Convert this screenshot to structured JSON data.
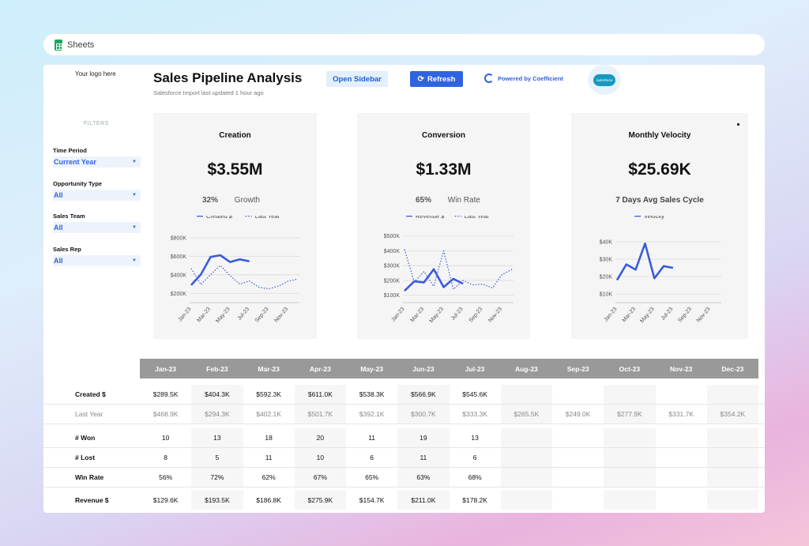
{
  "topbar": {
    "app_name": "Sheets"
  },
  "header": {
    "logo_placeholder": "Your logo here",
    "title": "Sales Pipeline Analysis",
    "subtitle": "Salesforce Import last updated 1 hour ago",
    "open_sidebar_label": "Open Sidebar",
    "refresh_label": "Refresh",
    "powered_by": "Powered by Coefficient",
    "salesforce_logo_text": "salesforce"
  },
  "filters": {
    "title": "FILTERS",
    "items": [
      {
        "label": "Time Period",
        "value": "Current Year"
      },
      {
        "label": "Opportunity Type",
        "value": "All"
      },
      {
        "label": "Sales Team",
        "value": "All"
      },
      {
        "label": "Sales Rep",
        "value": "All"
      }
    ]
  },
  "cards": [
    {
      "title": "Creation",
      "value": "$3.55M",
      "metric_pct": "32%",
      "metric_label": "Growth"
    },
    {
      "title": "Conversion",
      "value": "$1.33M",
      "metric_pct": "65%",
      "metric_label": "Win Rate"
    },
    {
      "title": "Monthly Velocity",
      "value": "$25.69K",
      "metric_pct": "",
      "metric_label": "7 Days Avg Sales Cycle"
    }
  ],
  "chart_data": [
    {
      "type": "line",
      "x": [
        "Jan-23",
        "Feb-23",
        "Mar-23",
        "Apr-23",
        "May-23",
        "Jun-23",
        "Jul-23",
        "Aug-23",
        "Sep-23",
        "Oct-23",
        "Nov-23",
        "Dec-23"
      ],
      "xticks": [
        "Jan-23",
        "Mar-23",
        "May-23",
        "Jul-23",
        "Sep-23",
        "Nov-23"
      ],
      "yticks": [
        "$200K",
        "$400K",
        "$600K",
        "$800K"
      ],
      "ylim": [
        100,
        850
      ],
      "series": [
        {
          "name": "Created $",
          "style": "solid",
          "color": "#3b5bdb",
          "values": [
            289.5,
            404.3,
            592.3,
            611.0,
            538.3,
            566.9,
            545.6,
            null,
            null,
            null,
            null,
            null
          ]
        },
        {
          "name": "Last Year",
          "style": "dotted",
          "color": "#3b5bdb",
          "values": [
            468.9,
            294.3,
            402.1,
            501.7,
            392.1,
            300.7,
            333.3,
            265.5,
            249.0,
            277.9,
            331.7,
            354.2
          ]
        }
      ]
    },
    {
      "type": "line",
      "x": [
        "Jan-23",
        "Feb-23",
        "Mar-23",
        "Apr-23",
        "May-23",
        "Jun-23",
        "Jul-23",
        "Aug-23",
        "Sep-23",
        "Oct-23",
        "Nov-23",
        "Dec-23"
      ],
      "xticks": [
        "Jan-23",
        "Mar-23",
        "May-23",
        "Jul-23",
        "Sep-23",
        "Nov-23"
      ],
      "yticks": [
        "$100K",
        "$200K",
        "$300K",
        "$400K",
        "$500K"
      ],
      "ylim": [
        50,
        520
      ],
      "series": [
        {
          "name": "Revenue $",
          "style": "solid",
          "color": "#3b5bdb",
          "values": [
            129.6,
            193.5,
            186.8,
            275.9,
            154.7,
            211.0,
            178.2,
            null,
            null,
            null,
            null,
            null
          ]
        },
        {
          "name": "Last Year",
          "style": "dotted",
          "color": "#3b5bdb",
          "values": [
            410,
            190,
            260,
            160,
            400,
            140,
            200,
            170,
            175,
            150,
            240,
            275
          ]
        }
      ]
    },
    {
      "type": "line",
      "x": [
        "Jan-23",
        "Feb-23",
        "Mar-23",
        "Apr-23",
        "May-23",
        "Jun-23",
        "Jul-23",
        "Aug-23",
        "Sep-23",
        "Oct-23",
        "Nov-23",
        "Dec-23"
      ],
      "xticks": [
        "Jan-23",
        "Mar-23",
        "May-23",
        "Jul-23",
        "Sep-23",
        "Nov-23"
      ],
      "yticks": [
        "$10K",
        "$20K",
        "$30K",
        "$40K"
      ],
      "ylim": [
        5,
        45
      ],
      "series": [
        {
          "name": "Velocity",
          "style": "solid",
          "color": "#3b5bdb",
          "values": [
            18,
            27,
            24,
            39,
            19,
            26,
            25,
            null,
            null,
            null,
            null,
            null
          ]
        }
      ]
    }
  ],
  "table": {
    "months": [
      "Jan-23",
      "Feb-23",
      "Mar-23",
      "Apr-23",
      "May-23",
      "Jun-23",
      "Jul-23",
      "Aug-23",
      "Sep-23",
      "Oct-23",
      "Nov-23",
      "Dec-23"
    ],
    "rows": [
      {
        "label": "Created $",
        "light": false,
        "values": [
          "$289.5K",
          "$404.3K",
          "$592.3K",
          "$611.0K",
          "$538.3K",
          "$566.9K",
          "$545.6K",
          "",
          "",
          "",
          "",
          ""
        ]
      },
      {
        "label": "Last Year",
        "light": true,
        "values": [
          "$468.9K",
          "$294.3K",
          "$402.1K",
          "$501.7K",
          "$392.1K",
          "$300.7K",
          "$333.3K",
          "$265.5K",
          "$249.0K",
          "$277.9K",
          "$331.7K",
          "$354.2K"
        ]
      },
      {
        "label": "# Won",
        "light": false,
        "values": [
          "10",
          "13",
          "18",
          "20",
          "11",
          "19",
          "13",
          "",
          "",
          "",
          "",
          ""
        ]
      },
      {
        "label": "# Lost",
        "light": false,
        "values": [
          "8",
          "5",
          "11",
          "10",
          "6",
          "11",
          "6",
          "",
          "",
          "",
          "",
          ""
        ]
      },
      {
        "label": "Win Rate",
        "light": false,
        "values": [
          "56%",
          "72%",
          "62%",
          "67%",
          "65%",
          "63%",
          "68%",
          "",
          "",
          "",
          "",
          ""
        ]
      },
      {
        "label": "Revenue $",
        "light": false,
        "values": [
          "$129.6K",
          "$193.5K",
          "$186.8K",
          "$275.9K",
          "$154.7K",
          "$211.0K",
          "$178.2K",
          "",
          "",
          "",
          "",
          ""
        ]
      }
    ]
  }
}
